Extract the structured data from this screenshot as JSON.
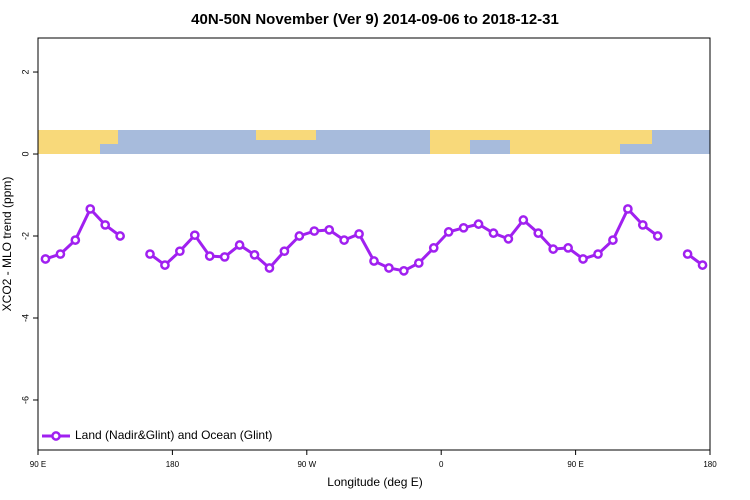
{
  "chart_data": {
    "type": "line",
    "title": "40N-50N November (Ver 9)   2014-09-06 to 2018-12-31",
    "x_label": "Longitude (deg E)",
    "y_label": "XCO2 - MLO trend (ppm)",
    "x": [
      95,
      105,
      115,
      125,
      135,
      145,
      155,
      165,
      175,
      185,
      195,
      205,
      215,
      225,
      235,
      245,
      255,
      265,
      275,
      285,
      295,
      305,
      315,
      325,
      335,
      345,
      355,
      365,
      375,
      385,
      395,
      405,
      415,
      425,
      435,
      445,
      455,
      465,
      475,
      485,
      495,
      505,
      515,
      525,
      535
    ],
    "series": [
      {
        "name": "Land (Nadir&Glint) and Ocean (Glint)",
        "color": "#a020f0",
        "values": [
          -2.56,
          -2.44,
          -2.1,
          -1.34,
          -1.73,
          -2.0,
          null,
          -2.44,
          -2.71,
          -2.37,
          -1.98,
          -2.49,
          -2.51,
          -2.22,
          -2.46,
          -2.78,
          -2.37,
          -2.0,
          -1.88,
          -1.85,
          -2.1,
          -1.95,
          -2.61,
          -2.78,
          -2.85,
          -2.66,
          -2.29,
          -1.9,
          -1.8,
          -1.71,
          -1.93,
          -2.07,
          -1.61,
          -1.93,
          -2.32,
          -2.29,
          -2.56,
          -2.44,
          -2.1,
          -1.34,
          -1.73,
          -2.0,
          null,
          -2.44,
          -2.71
        ]
      }
    ],
    "xlim": [
      90,
      540
    ],
    "xticks": [
      {
        "value": 90,
        "label": "90 E"
      },
      {
        "value": 180,
        "label": "180"
      },
      {
        "value": 270,
        "label": "90 W"
      },
      {
        "value": 360,
        "label": "0"
      },
      {
        "value": 450,
        "label": "90 E"
      },
      {
        "value": 540,
        "label": "180"
      }
    ],
    "ylim": [
      -7.22,
      2.83
    ],
    "yticks": [
      -6,
      -4,
      -2,
      0,
      2
    ],
    "legend": "bottom-left"
  }
}
